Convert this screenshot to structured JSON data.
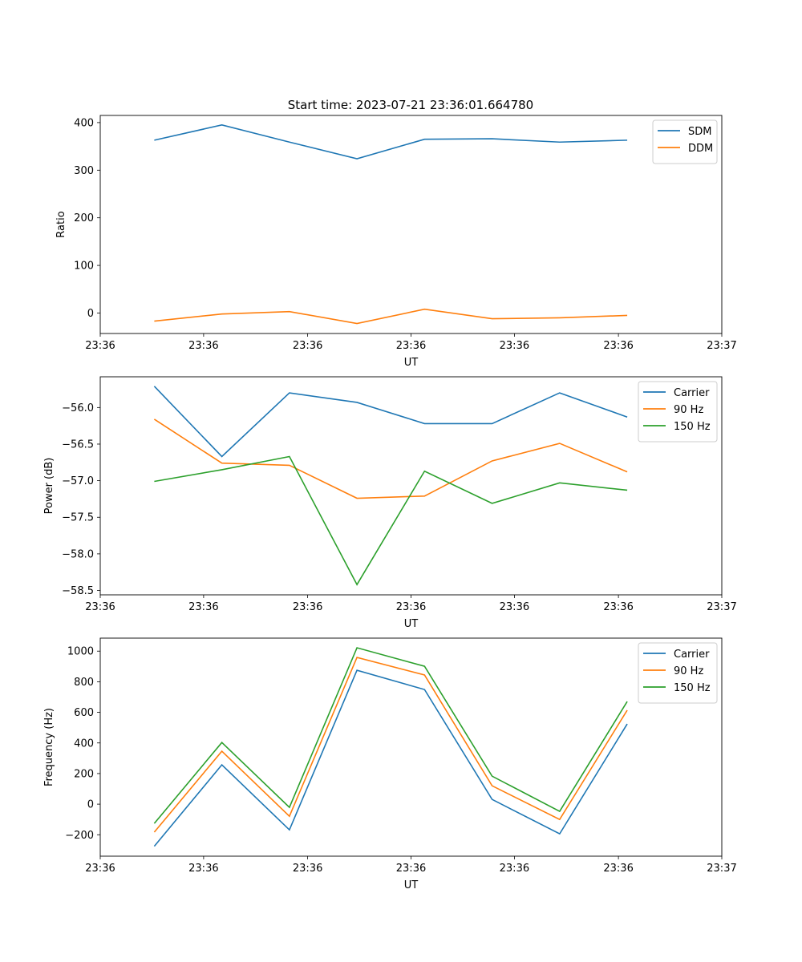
{
  "title": "Start time: 2023-07-21 23:36:01.664780",
  "colors": {
    "blue": "#1f77b4",
    "orange": "#ff7f0e",
    "green": "#2ca02c"
  },
  "chart_data": [
    {
      "type": "line",
      "xlabel": "UT",
      "ylabel": "Ratio",
      "x_tick_labels": [
        "23:36",
        "23:36",
        "23:36",
        "23:36",
        "23:36",
        "23:36",
        "23:37"
      ],
      "x": [
        1,
        2,
        3,
        4,
        5,
        6,
        7,
        8
      ],
      "xlim": [
        0.2,
        9.4
      ],
      "x_ticks": [
        0.2,
        1.73,
        3.27,
        4.8,
        6.33,
        7.87,
        9.4
      ],
      "ylim": [
        -43,
        415
      ],
      "y_ticks": [
        0,
        100,
        200,
        300,
        400
      ],
      "y_tick_labels": [
        "0",
        "100",
        "200",
        "300",
        "400"
      ],
      "legend": "top-right",
      "series": [
        {
          "name": "SDM",
          "color": "#1f77b4",
          "values": [
            363,
            395,
            359,
            324,
            365,
            366,
            359,
            363
          ]
        },
        {
          "name": "DDM",
          "color": "#ff7f0e",
          "values": [
            -17,
            -2,
            3,
            -22,
            8,
            -12,
            -10,
            -5
          ]
        }
      ]
    },
    {
      "type": "line",
      "xlabel": "UT",
      "ylabel": "Power (dB)",
      "x_tick_labels": [
        "23:36",
        "23:36",
        "23:36",
        "23:36",
        "23:36",
        "23:36",
        "23:37"
      ],
      "x": [
        1,
        2,
        3,
        4,
        5,
        6,
        7,
        8
      ],
      "xlim": [
        0.2,
        9.4
      ],
      "x_ticks": [
        0.2,
        1.73,
        3.27,
        4.8,
        6.33,
        7.87,
        9.4
      ],
      "ylim": [
        -58.56,
        -55.58
      ],
      "y_ticks": [
        -56.0,
        -56.5,
        -57.0,
        -57.5,
        -58.0,
        -58.5
      ],
      "y_tick_labels": [
        "−56.0",
        "−56.5",
        "−57.0",
        "−57.5",
        "−58.0",
        "−58.5"
      ],
      "legend": "top-right",
      "series": [
        {
          "name": "Carrier",
          "color": "#1f77b4",
          "values": [
            -55.71,
            -56.67,
            -55.8,
            -55.93,
            -56.22,
            -56.22,
            -55.8,
            -56.13
          ]
        },
        {
          "name": "90 Hz",
          "color": "#ff7f0e",
          "values": [
            -56.16,
            -56.76,
            -56.79,
            -57.24,
            -57.21,
            -56.73,
            -56.49,
            -56.88
          ]
        },
        {
          "name": "150 Hz",
          "color": "#2ca02c",
          "values": [
            -57.01,
            -56.85,
            -56.67,
            -58.42,
            -56.87,
            -57.31,
            -57.03,
            -57.13
          ]
        }
      ]
    },
    {
      "type": "line",
      "xlabel": "UT",
      "ylabel": "Frequency (Hz)",
      "x_tick_labels": [
        "23:36",
        "23:36",
        "23:36",
        "23:36",
        "23:36",
        "23:36",
        "23:37"
      ],
      "x": [
        1,
        2,
        3,
        4,
        5,
        6,
        7,
        8
      ],
      "xlim": [
        0.2,
        9.4
      ],
      "x_ticks": [
        0.2,
        1.73,
        3.27,
        4.8,
        6.33,
        7.87,
        9.4
      ],
      "ylim": [
        -340,
        1085
      ],
      "y_ticks": [
        -200,
        0,
        200,
        400,
        600,
        800,
        1000
      ],
      "y_tick_labels": [
        "−200",
        "0",
        "200",
        "400",
        "600",
        "800",
        "1000"
      ],
      "legend": "top-right",
      "series": [
        {
          "name": "Carrier",
          "color": "#1f77b4",
          "values": [
            -275,
            257,
            -168,
            875,
            749,
            31,
            -194,
            524
          ]
        },
        {
          "name": "90 Hz",
          "color": "#ff7f0e",
          "values": [
            -183,
            346,
            -79,
            959,
            844,
            120,
            -100,
            614
          ]
        },
        {
          "name": "150 Hz",
          "color": "#2ca02c",
          "values": [
            -126,
            403,
            -21,
            1022,
            901,
            183,
            -47,
            671
          ]
        }
      ]
    }
  ]
}
